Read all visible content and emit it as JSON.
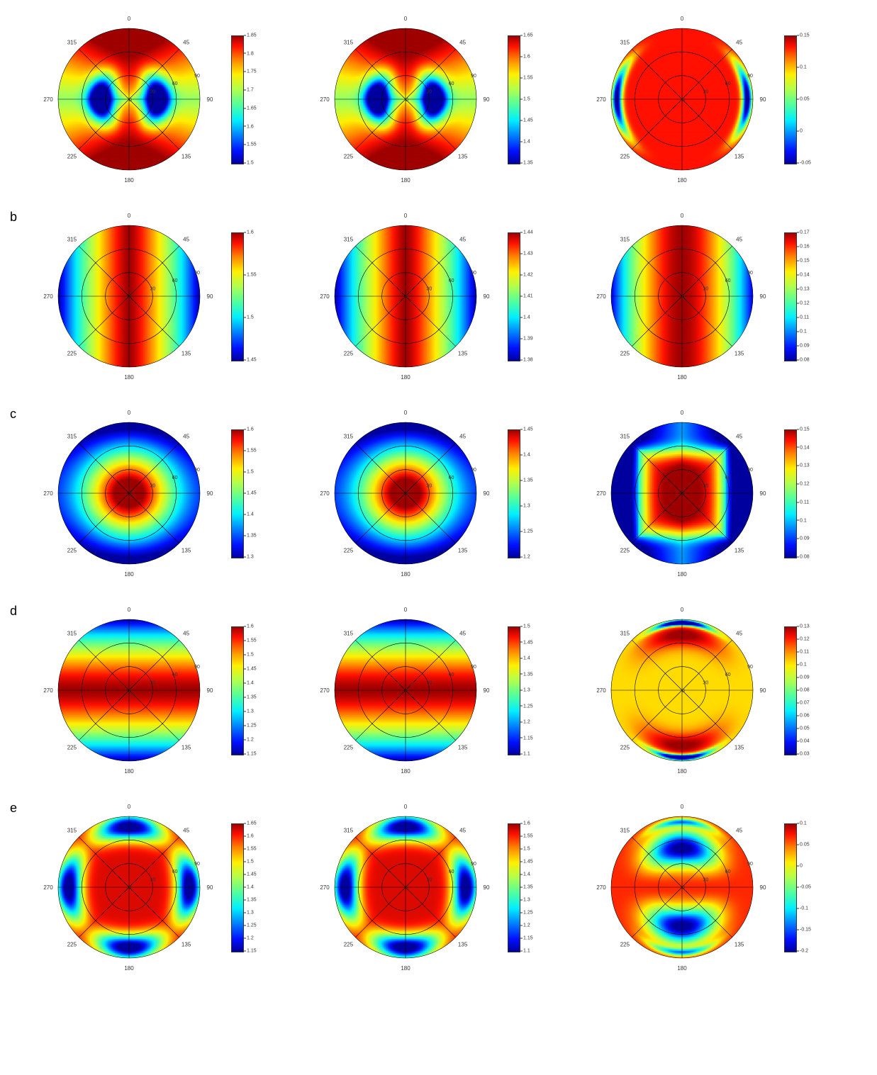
{
  "figure": {
    "background_color": "#ffffff",
    "font_family": "Arial",
    "row_label_fontsize": 18,
    "tick_fontsize": 8,
    "colorbar_fontsize": 7,
    "grid_color": "#000000",
    "grid_stroke_width": 0.6,
    "jet_colormap_stops": [
      {
        "t": 0.0,
        "c": "#00009f"
      },
      {
        "t": 0.1,
        "c": "#0010ff"
      },
      {
        "t": 0.22,
        "c": "#007fff"
      },
      {
        "t": 0.34,
        "c": "#00efff"
      },
      {
        "t": 0.46,
        "c": "#4fff9f"
      },
      {
        "t": 0.58,
        "c": "#afff4f"
      },
      {
        "t": 0.7,
        "c": "#ffef00"
      },
      {
        "t": 0.82,
        "c": "#ff7f00"
      },
      {
        "t": 0.92,
        "c": "#ff1000"
      },
      {
        "t": 1.0,
        "c": "#9f0000"
      }
    ],
    "polar_outer_radius_deg": 90,
    "radial_ticks_deg": [
      0,
      30,
      60,
      90
    ],
    "angular_ticks_deg": [
      0,
      45,
      90,
      135,
      180,
      225,
      270,
      315
    ]
  },
  "rows": [
    {
      "label": "",
      "charts": [
        {
          "type": "polar-heatmap",
          "colorbar": {
            "vmin": 1.5,
            "vmax": 1.85,
            "tick_step": 0.05,
            "ticks": [
              "1.85",
              "1.8",
              "1.75",
              "1.7",
              "1.65",
              "1.6",
              "1.55",
              "1.5"
            ]
          },
          "pattern": "a-left"
        },
        {
          "type": "polar-heatmap",
          "colorbar": {
            "vmin": 1.35,
            "vmax": 1.65,
            "tick_step": 0.05,
            "ticks": [
              "1.65",
              "1.6",
              "1.55",
              "1.5",
              "1.45",
              "1.4",
              "1.35"
            ]
          },
          "pattern": "a-left"
        },
        {
          "type": "polar-heatmap",
          "colorbar": {
            "vmin": -0.05,
            "vmax": 0.15,
            "tick_step": 0.05,
            "ticks": [
              "0.15",
              "0.1",
              "0.05",
              "0",
              "-0.05"
            ]
          },
          "pattern": "a-right"
        }
      ]
    },
    {
      "label": "b",
      "charts": [
        {
          "type": "polar-heatmap",
          "colorbar": {
            "vmin": 1.45,
            "vmax": 1.6,
            "tick_step": 0.05,
            "ticks": [
              "1.6",
              "1.55",
              "1.5",
              "1.45"
            ]
          },
          "pattern": "b"
        },
        {
          "type": "polar-heatmap",
          "colorbar": {
            "vmin": 1.38,
            "vmax": 1.44,
            "tick_step": 0.01,
            "ticks": [
              "1.44",
              "1.43",
              "1.42",
              "1.41",
              "1.4",
              "1.39",
              "1.38"
            ]
          },
          "pattern": "b"
        },
        {
          "type": "polar-heatmap",
          "colorbar": {
            "vmin": 0.08,
            "vmax": 0.17,
            "tick_step": 0.01,
            "ticks": [
              "0.17",
              "0.16",
              "0.15",
              "0.14",
              "0.13",
              "0.12",
              "0.11",
              "0.1",
              "0.09",
              "0.08"
            ]
          },
          "pattern": "b-soft"
        }
      ]
    },
    {
      "label": "c",
      "charts": [
        {
          "type": "polar-heatmap",
          "colorbar": {
            "vmin": 1.3,
            "vmax": 1.6,
            "tick_step": 0.05,
            "ticks": [
              "1.6",
              "1.55",
              "1.5",
              "1.45",
              "1.4",
              "1.35",
              "1.3"
            ]
          },
          "pattern": "c"
        },
        {
          "type": "polar-heatmap",
          "colorbar": {
            "vmin": 1.2,
            "vmax": 1.45,
            "tick_step": 0.05,
            "ticks": [
              "1.45",
              "1.4",
              "1.35",
              "1.3",
              "1.25",
              "1.2"
            ]
          },
          "pattern": "c"
        },
        {
          "type": "polar-heatmap",
          "colorbar": {
            "vmin": 0.08,
            "vmax": 0.15,
            "tick_step": 0.01,
            "ticks": [
              "0.15",
              "0.14",
              "0.13",
              "0.12",
              "0.11",
              "0.1",
              "0.09",
              "0.08"
            ]
          },
          "pattern": "c-box"
        }
      ]
    },
    {
      "label": "d",
      "charts": [
        {
          "type": "polar-heatmap",
          "colorbar": {
            "vmin": 1.15,
            "vmax": 1.6,
            "tick_step": 0.05,
            "ticks": [
              "1.6",
              "1.55",
              "1.5",
              "1.45",
              "1.4",
              "1.35",
              "1.3",
              "1.25",
              "1.2",
              "1.15"
            ]
          },
          "pattern": "d"
        },
        {
          "type": "polar-heatmap",
          "colorbar": {
            "vmin": 1.1,
            "vmax": 1.5,
            "tick_step": 0.05,
            "ticks": [
              "1.5",
              "1.45",
              "1.4",
              "1.35",
              "1.3",
              "1.25",
              "1.2",
              "1.15",
              "1.1"
            ]
          },
          "pattern": "d"
        },
        {
          "type": "polar-heatmap",
          "colorbar": {
            "vmin": 0.03,
            "vmax": 0.13,
            "tick_step": 0.01,
            "ticks": [
              "0.13",
              "0.12",
              "0.11",
              "0.1",
              "0.09",
              "0.08",
              "0.07",
              "0.06",
              "0.05",
              "0.04",
              "0.03"
            ]
          },
          "pattern": "d-lobes"
        }
      ]
    },
    {
      "label": "e",
      "charts": [
        {
          "type": "polar-heatmap",
          "colorbar": {
            "vmin": 1.15,
            "vmax": 1.65,
            "tick_step": 0.05,
            "ticks": [
              "1.65",
              "1.6",
              "1.55",
              "1.5",
              "1.45",
              "1.4",
              "1.35",
              "1.3",
              "1.25",
              "1.2",
              "1.15"
            ]
          },
          "pattern": "e"
        },
        {
          "type": "polar-heatmap",
          "colorbar": {
            "vmin": 1.1,
            "vmax": 1.6,
            "tick_step": 0.05,
            "ticks": [
              "1.6",
              "1.55",
              "1.5",
              "1.45",
              "1.4",
              "1.35",
              "1.3",
              "1.25",
              "1.2",
              "1.15",
              "1.1"
            ]
          },
          "pattern": "e"
        },
        {
          "type": "polar-heatmap",
          "colorbar": {
            "vmin": -0.2,
            "vmax": 0.1,
            "tick_step": 0.05,
            "ticks": [
              "0.1",
              "0.05",
              "0",
              "-0.05",
              "-0.1",
              "-0.15",
              "-0.2"
            ]
          },
          "pattern": "e-lobes"
        }
      ]
    }
  ]
}
